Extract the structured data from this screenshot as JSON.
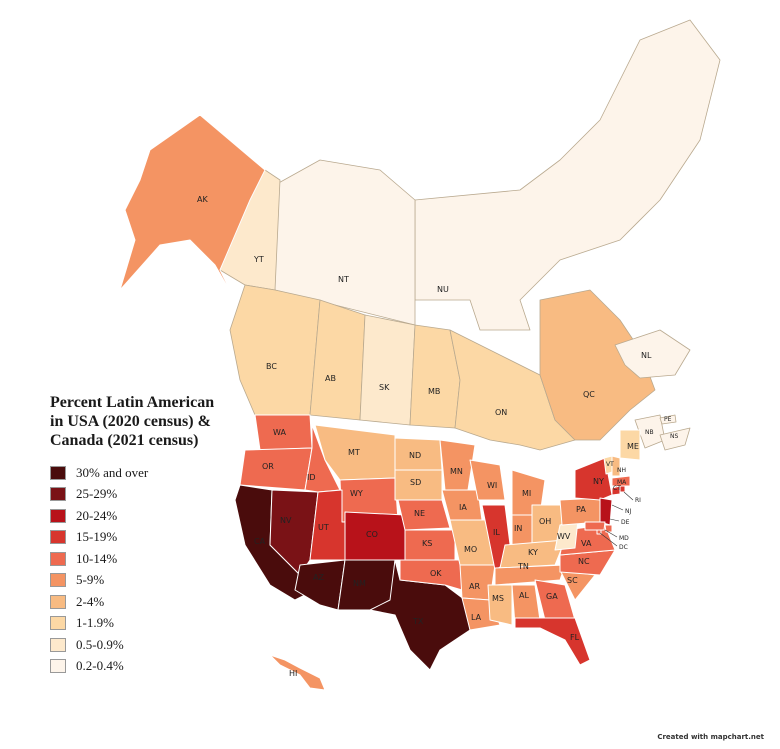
{
  "legend": {
    "title_lines": [
      "Percent Latin American",
      "in USA (2020 census) &",
      "Canada (2021 census)"
    ],
    "items": [
      {
        "label": "30% and over",
        "color": "#4a0c0c"
      },
      {
        "label": "25-29%",
        "color": "#7a1216"
      },
      {
        "label": "20-24%",
        "color": "#b8121a"
      },
      {
        "label": "15-19%",
        "color": "#d7352d"
      },
      {
        "label": "10-14%",
        "color": "#ee6a50"
      },
      {
        "label": "5-9%",
        "color": "#f49463"
      },
      {
        "label": "2-4%",
        "color": "#f8bb82"
      },
      {
        "label": "1-1.9%",
        "color": "#fcd8a5"
      },
      {
        "label": "0.5-0.9%",
        "color": "#fde9cc"
      },
      {
        "label": "0.2-0.4%",
        "color": "#fdf4ea"
      }
    ]
  },
  "regions": {
    "AK": {
      "label": "AK",
      "color": "#f49463"
    },
    "YT": {
      "label": "YT",
      "color": "#fde9cc"
    },
    "NT": {
      "label": "NT",
      "color": "#fdf4ea"
    },
    "NU": {
      "label": "NU",
      "color": "#fdf4ea"
    },
    "BC": {
      "label": "BC",
      "color": "#fcd8a5"
    },
    "AB": {
      "label": "AB",
      "color": "#fcd8a5"
    },
    "SK": {
      "label": "SK",
      "color": "#fde9cc"
    },
    "MB": {
      "label": "MB",
      "color": "#fcd8a5"
    },
    "ON": {
      "label": "ON",
      "color": "#fcd8a5"
    },
    "QC": {
      "label": "QC",
      "color": "#f8bb82"
    },
    "NL": {
      "label": "NL",
      "color": "#fdf4ea"
    },
    "NB": {
      "label": "NB",
      "color": "#fdf4ea"
    },
    "NS": {
      "label": "NS",
      "color": "#fdf4ea"
    },
    "PE": {
      "label": "PE",
      "color": "#fdf4ea"
    },
    "WA": {
      "label": "WA",
      "color": "#ee6a50"
    },
    "OR": {
      "label": "OR",
      "color": "#ee6a50"
    },
    "CA": {
      "label": "CA",
      "color": "#4a0c0c"
    },
    "NV": {
      "label": "NV",
      "color": "#7a1216"
    },
    "ID": {
      "label": "ID",
      "color": "#ee6a50"
    },
    "MT": {
      "label": "MT",
      "color": "#f8bb82"
    },
    "WY": {
      "label": "WY",
      "color": "#ee6a50"
    },
    "UT": {
      "label": "UT",
      "color": "#d7352d"
    },
    "AZ": {
      "label": "AZ",
      "color": "#4a0c0c"
    },
    "CO": {
      "label": "CO",
      "color": "#b8121a"
    },
    "NM": {
      "label": "NM",
      "color": "#4a0c0c"
    },
    "TX": {
      "label": "TX",
      "color": "#4a0c0c"
    },
    "ND": {
      "label": "ND",
      "color": "#f8bb82"
    },
    "SD": {
      "label": "SD",
      "color": "#f8bb82"
    },
    "NE": {
      "label": "NE",
      "color": "#ee6a50"
    },
    "KS": {
      "label": "KS",
      "color": "#ee6a50"
    },
    "OK": {
      "label": "OK",
      "color": "#ee6a50"
    },
    "MN": {
      "label": "MN",
      "color": "#f49463"
    },
    "IA": {
      "label": "IA",
      "color": "#f49463"
    },
    "MO": {
      "label": "MO",
      "color": "#f8bb82"
    },
    "AR": {
      "label": "AR",
      "color": "#f49463"
    },
    "LA": {
      "label": "LA",
      "color": "#f49463"
    },
    "WI": {
      "label": "WI",
      "color": "#f49463"
    },
    "IL": {
      "label": "IL",
      "color": "#d7352d"
    },
    "MI": {
      "label": "MI",
      "color": "#f49463"
    },
    "IN": {
      "label": "IN",
      "color": "#f49463"
    },
    "OH": {
      "label": "OH",
      "color": "#f8bb82"
    },
    "KY": {
      "label": "KY",
      "color": "#f8bb82"
    },
    "TN": {
      "label": "TN",
      "color": "#f49463"
    },
    "MS": {
      "label": "MS",
      "color": "#f8bb82"
    },
    "AL": {
      "label": "AL",
      "color": "#f49463"
    },
    "GA": {
      "label": "GA",
      "color": "#ee6a50"
    },
    "FL": {
      "label": "FL",
      "color": "#d7352d"
    },
    "SC": {
      "label": "SC",
      "color": "#f49463"
    },
    "NC": {
      "label": "NC",
      "color": "#ee6a50"
    },
    "VA": {
      "label": "VA",
      "color": "#ee6a50"
    },
    "WV": {
      "label": "WV",
      "color": "#fde9cc"
    },
    "PA": {
      "label": "PA",
      "color": "#f49463"
    },
    "NY": {
      "label": "NY",
      "color": "#d7352d"
    },
    "NJ": {
      "label": "NJ",
      "color": "#b8121a"
    },
    "DE": {
      "label": "DE",
      "color": "#ee6a50"
    },
    "MD": {
      "label": "MD",
      "color": "#ee6a50"
    },
    "DC": {
      "label": "DC",
      "color": "#ee6a50"
    },
    "CT": {
      "label": "CT",
      "color": "#d7352d"
    },
    "RI": {
      "label": "RI",
      "color": "#d7352d"
    },
    "MA": {
      "label": "MA",
      "color": "#ee6a50"
    },
    "VT": {
      "label": "VT",
      "color": "#fcd8a5"
    },
    "NH": {
      "label": "NH",
      "color": "#f8bb82"
    },
    "ME": {
      "label": "ME",
      "color": "#fcd8a5"
    },
    "HI": {
      "label": "HI",
      "color": "#f49463"
    }
  },
  "credit": "Created with mapchart.net"
}
